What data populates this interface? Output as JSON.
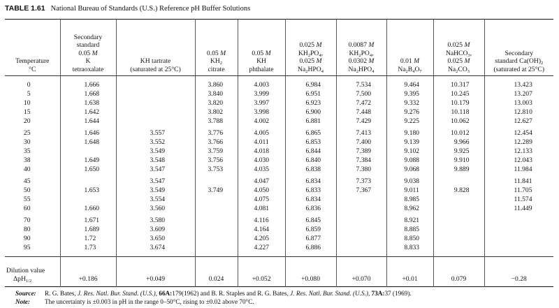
{
  "title": {
    "label": "TABLE 1.61",
    "text": "National Bureau of Standards (U.S.) Reference pH Buffer Solutions"
  },
  "headers": [
    [
      [
        {
          "t": "Temperature"
        }
      ],
      [
        {
          "t": "°C"
        }
      ]
    ],
    [
      [
        {
          "t": "Secondary"
        }
      ],
      [
        {
          "t": "standard"
        }
      ],
      [
        {
          "t": "0.05 "
        },
        {
          "t": "M",
          "i": true
        }
      ],
      [
        {
          "t": "K"
        }
      ],
      [
        {
          "t": "tetraoxalate"
        }
      ]
    ],
    [
      [
        {
          "t": "KH tartrate"
        }
      ],
      [
        {
          "t": "(saturated at 25°C)"
        }
      ]
    ],
    [
      [
        {
          "t": "0.05 "
        },
        {
          "t": "M",
          "i": true
        }
      ],
      [
        {
          "t": "KH"
        },
        {
          "t": "2",
          "sub": true
        }
      ],
      [
        {
          "t": "citrate"
        }
      ]
    ],
    [
      [
        {
          "t": "0.05 "
        },
        {
          "t": "M",
          "i": true
        }
      ],
      [
        {
          "t": "KH"
        }
      ],
      [
        {
          "t": "phthalate"
        }
      ]
    ],
    [
      [
        {
          "t": "0.025 "
        },
        {
          "t": "M",
          "i": true
        }
      ],
      [
        {
          "t": "KH"
        },
        {
          "t": "2",
          "sub": true
        },
        {
          "t": "PO"
        },
        {
          "t": "4",
          "sub": true
        },
        {
          "t": ","
        }
      ],
      [
        {
          "t": "0.025 "
        },
        {
          "t": "M",
          "i": true
        }
      ],
      [
        {
          "t": "Na"
        },
        {
          "t": "2",
          "sub": true
        },
        {
          "t": "HPO"
        },
        {
          "t": "4",
          "sub": true
        }
      ]
    ],
    [
      [
        {
          "t": "0.0087 "
        },
        {
          "t": "M",
          "i": true
        }
      ],
      [
        {
          "t": "KH"
        },
        {
          "t": "2",
          "sub": true
        },
        {
          "t": "PO"
        },
        {
          "t": "4",
          "sub": true
        },
        {
          "t": ","
        }
      ],
      [
        {
          "t": "0.0302 "
        },
        {
          "t": "M",
          "i": true
        }
      ],
      [
        {
          "t": "Na"
        },
        {
          "t": "2",
          "sub": true
        },
        {
          "t": "HPO"
        },
        {
          "t": "4",
          "sub": true
        }
      ]
    ],
    [
      [
        {
          "t": "0.01 "
        },
        {
          "t": "M",
          "i": true
        }
      ],
      [
        {
          "t": "Na"
        },
        {
          "t": "2",
          "sub": true
        },
        {
          "t": "B"
        },
        {
          "t": "4",
          "sub": true
        },
        {
          "t": "O"
        },
        {
          "t": "7",
          "sub": true
        }
      ]
    ],
    [
      [
        {
          "t": "0.025 "
        },
        {
          "t": "M",
          "i": true
        }
      ],
      [
        {
          "t": "NaHCO"
        },
        {
          "t": "3",
          "sub": true
        },
        {
          "t": ","
        }
      ],
      [
        {
          "t": "0.025 "
        },
        {
          "t": "M",
          "i": true
        }
      ],
      [
        {
          "t": "Na"
        },
        {
          "t": "2",
          "sub": true
        },
        {
          "t": "CO"
        },
        {
          "t": "3",
          "sub": true
        }
      ]
    ],
    [
      [
        {
          "t": "Secondary"
        }
      ],
      [
        {
          "t": "standard Ca(OH)"
        },
        {
          "t": "2",
          "sub": true
        }
      ],
      [
        {
          "t": "(saturated at 25°C)"
        }
      ]
    ]
  ],
  "groups": [
    [
      [
        "0",
        "1.666",
        "",
        "3.860",
        "4.003",
        "6.984",
        "7.534",
        "9.464",
        "10.317",
        "13.423"
      ],
      [
        "5",
        "1.668",
        "",
        "3.840",
        "3.999",
        "6.951",
        "7.500",
        "9.395",
        "10.245",
        "13.207"
      ],
      [
        "10",
        "1.638",
        "",
        "3.820",
        "3.997",
        "6.923",
        "7.472",
        "9.332",
        "10.179",
        "13.003"
      ],
      [
        "15",
        "1.642",
        "",
        "3.802",
        "3.998",
        "6.900",
        "7.448",
        "9.276",
        "10.118",
        "12.810"
      ],
      [
        "20",
        "1.644",
        "",
        "3.788",
        "4.002",
        "6.881",
        "7.429",
        "9.225",
        "10.062",
        "12.627"
      ]
    ],
    [
      [
        "25",
        "1.646",
        "3.557",
        "3.776",
        "4.005",
        "6.865",
        "7.413",
        "9.180",
        "10.012",
        "12.454"
      ],
      [
        "30",
        "1.648",
        "3.552",
        "3.766",
        "4.011",
        "6.853",
        "7.400",
        "9.139",
        "9.966",
        "12.289"
      ],
      [
        "35",
        "",
        "3.549",
        "3.759",
        "4.018",
        "6.844",
        "7.389",
        "9.102",
        "9.925",
        "12.133"
      ],
      [
        "38",
        "1.649",
        "3.548",
        "3.756",
        "4.030",
        "6.840",
        "7.384",
        "9.088",
        "9.910",
        "12.043"
      ],
      [
        "40",
        "1.650",
        "3.547",
        "3.753",
        "4.035",
        "6.838",
        "7.380",
        "9.068",
        "9.889",
        "11.984"
      ]
    ],
    [
      [
        "45",
        "",
        "3.547",
        "",
        "4.047",
        "6.834",
        "7.373",
        "9.038",
        "",
        "11.841"
      ],
      [
        "50",
        "1.653",
        "3.549",
        "3.749",
        "4.050",
        "6.833",
        "7.367",
        "9.011",
        "9.828",
        "11.705"
      ],
      [
        "55",
        "",
        "3.554",
        "",
        "4.075",
        "6.834",
        "",
        "8.985",
        "",
        "11.574"
      ],
      [
        "60",
        "1.660",
        "3.560",
        "",
        "4.081",
        "6.836",
        "",
        "8.962",
        "",
        "11.449"
      ]
    ],
    [
      [
        "70",
        "1.671",
        "3.580",
        "",
        "4.116",
        "6.845",
        "",
        "8.921",
        "",
        ""
      ],
      [
        "80",
        "1.689",
        "3.609",
        "",
        "4.164",
        "6.859",
        "",
        "8.885",
        "",
        ""
      ],
      [
        "90",
        "1.72",
        "3.650",
        "",
        "4.205",
        "6.877",
        "",
        "8.850",
        "",
        ""
      ],
      [
        "95",
        "1.73",
        "3.674",
        "",
        "4.227",
        "6.886",
        "",
        "8.833",
        "",
        ""
      ]
    ]
  ],
  "dilution": {
    "label_line1": "Dilution value",
    "label_line2": "ΔpH",
    "label_sub": "1/2",
    "values": [
      "+0.186",
      "+0.049",
      "0.024",
      "+0.052",
      "+0.080",
      "+0.070",
      "+0.01",
      "0.079",
      "−0.28"
    ]
  },
  "source": {
    "heading": "Source:",
    "parts": [
      {
        "t": "R. G. Bates, "
      },
      {
        "t": "J. Res. Natl. Bur. Stand. (U.S.)",
        "i": true
      },
      {
        "t": ", "
      },
      {
        "t": "66A:",
        "b": true
      },
      {
        "t": "179(1962) and B. R. Staples and R. G. Bates, "
      },
      {
        "t": "J. Res. Natl. Bur. Stand. (U.S.)",
        "i": true
      },
      {
        "t": ", "
      },
      {
        "t": "73A:",
        "b": true
      },
      {
        "t": "37 (1969)."
      }
    ]
  },
  "note": {
    "heading": "Note:",
    "text": "The uncertainty is ±0.003 in pH in the range 0–50°C, rising to ±0.02 above 70°C."
  }
}
